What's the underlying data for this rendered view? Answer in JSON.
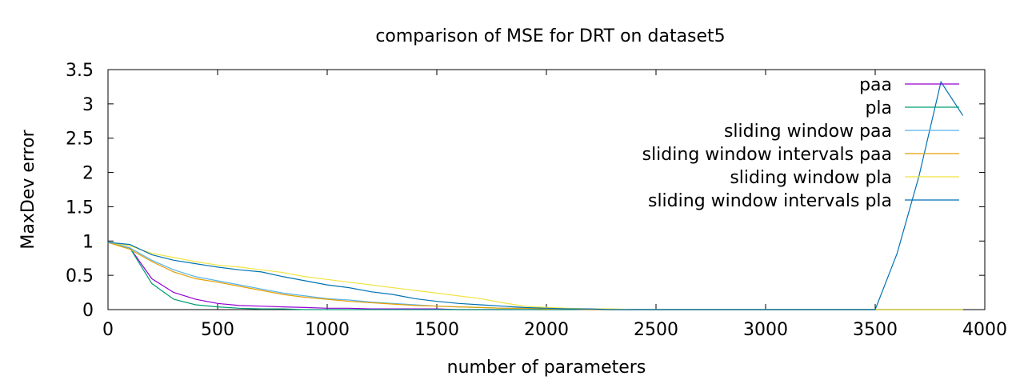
{
  "chart_data": {
    "type": "line",
    "title": "comparison of MSE for DRT on dataset5",
    "xlabel": "number of parameters",
    "ylabel": "MaxDev error",
    "xlim": [
      0,
      4000
    ],
    "ylim": [
      0,
      3.5
    ],
    "x_ticks": [
      "0",
      "500",
      "1000",
      "1500",
      "2000",
      "2500",
      "3000",
      "3500",
      "4000"
    ],
    "y_ticks": [
      "0",
      "0.5",
      "1",
      "1.5",
      "2",
      "2.5",
      "3",
      "3.5"
    ],
    "grid": false,
    "legend_position": "top-right",
    "series": [
      {
        "name": "paa",
        "color": "#9400d3",
        "x": [
          0,
          100,
          200,
          300,
          400,
          500,
          600,
          700,
          800,
          900,
          1000,
          1100,
          1200,
          1300,
          1400,
          1500,
          1600,
          1700,
          1800,
          1900,
          2000,
          2100,
          2200,
          2300,
          2400,
          2500,
          2600,
          2700,
          2800,
          2900,
          3000,
          3100,
          3200,
          3300,
          3400,
          3500,
          3600,
          3700,
          3800,
          3900
        ],
        "y": [
          0.98,
          0.9,
          0.45,
          0.25,
          0.15,
          0.09,
          0.06,
          0.05,
          0.04,
          0.03,
          0.02,
          0.02,
          0.01,
          0.01,
          0.01,
          0.01,
          0.0,
          0.0,
          0.0,
          0.0,
          0.0,
          0.0,
          0.0,
          0.0,
          0.0,
          0.0,
          0.0,
          0.0,
          0.0,
          0.0,
          0.0,
          0.0,
          0.0,
          0.0,
          0.0,
          0.0,
          0.0,
          0.0,
          0.0,
          0.0
        ]
      },
      {
        "name": "pla",
        "color": "#009e73",
        "x": [
          0,
          100,
          200,
          300,
          400,
          500,
          600,
          700,
          800,
          900,
          1000,
          1100,
          1200,
          1300,
          1400,
          1500,
          1600,
          1700,
          1800,
          1900,
          2000,
          2100,
          2200,
          2300,
          2400,
          2500,
          2600,
          2700,
          2800,
          2900,
          3000,
          3100,
          3200,
          3300,
          3400,
          3500,
          3600,
          3700,
          3800,
          3900
        ],
        "y": [
          0.98,
          0.9,
          0.38,
          0.15,
          0.07,
          0.04,
          0.02,
          0.01,
          0.01,
          0.0,
          0.0,
          0.0,
          0.0,
          0.0,
          0.0,
          0.0,
          0.0,
          0.0,
          0.0,
          0.0,
          0.0,
          0.0,
          0.0,
          0.0,
          0.0,
          0.0,
          0.0,
          0.0,
          0.0,
          0.0,
          0.0,
          0.0,
          0.0,
          0.0,
          0.0,
          0.0,
          0.0,
          0.0,
          0.0,
          0.0
        ]
      },
      {
        "name": "sliding window paa",
        "color": "#56b4e9",
        "x": [
          0,
          100,
          200,
          300,
          400,
          500,
          600,
          700,
          800,
          900,
          1000,
          1100,
          1200,
          1300,
          1400,
          1500,
          1600,
          1700,
          1800,
          1900,
          2000,
          2100,
          2200,
          2300,
          2400,
          2500,
          2600,
          2700,
          2800,
          2900,
          3000,
          3100,
          3200,
          3300,
          3400,
          3500,
          3600,
          3700,
          3800,
          3900
        ],
        "y": [
          0.98,
          0.9,
          0.72,
          0.58,
          0.48,
          0.42,
          0.36,
          0.3,
          0.24,
          0.2,
          0.16,
          0.14,
          0.11,
          0.09,
          0.07,
          0.05,
          0.04,
          0.03,
          0.02,
          0.02,
          0.01,
          0.01,
          0.0,
          0.0,
          0.0,
          0.0,
          0.0,
          0.0,
          0.0,
          0.0,
          0.0,
          0.0,
          0.0,
          0.0,
          0.0,
          0.0,
          0.0,
          0.0,
          0.0,
          0.0
        ]
      },
      {
        "name": "sliding window intervals paa",
        "color": "#e69f00",
        "x": [
          0,
          100,
          200,
          300,
          400,
          500,
          600,
          700,
          800,
          900,
          1000,
          1100,
          1200,
          1300,
          1400,
          1500,
          1600,
          1700,
          1800,
          1900,
          2000,
          2100,
          2200,
          2300,
          2400,
          2500,
          2600,
          2700,
          2800,
          2900,
          3000,
          3100,
          3200,
          3300,
          3400,
          3500,
          3600,
          3700,
          3800,
          3900
        ],
        "y": [
          0.98,
          0.88,
          0.7,
          0.55,
          0.45,
          0.4,
          0.34,
          0.28,
          0.22,
          0.18,
          0.15,
          0.12,
          0.1,
          0.08,
          0.06,
          0.05,
          0.04,
          0.03,
          0.02,
          0.02,
          0.01,
          0.01,
          0.0,
          0.0,
          0.0,
          0.0,
          0.0,
          0.0,
          0.0,
          0.0,
          0.0,
          0.0,
          0.0,
          0.0,
          0.0,
          0.0,
          0.0,
          0.0,
          0.0,
          0.0
        ]
      },
      {
        "name": "sliding window pla",
        "color": "#f0e442",
        "x": [
          0,
          100,
          200,
          300,
          400,
          500,
          600,
          700,
          800,
          900,
          1000,
          1100,
          1200,
          1300,
          1400,
          1500,
          1600,
          1700,
          1800,
          1900,
          2000,
          2100,
          2200,
          2300,
          2400,
          2500,
          2600,
          2700,
          2800,
          2900,
          3000,
          3100,
          3200,
          3300,
          3400,
          3500,
          3600,
          3700,
          3800,
          3900
        ],
        "y": [
          0.98,
          0.93,
          0.82,
          0.76,
          0.7,
          0.65,
          0.62,
          0.58,
          0.54,
          0.48,
          0.44,
          0.4,
          0.36,
          0.32,
          0.28,
          0.24,
          0.2,
          0.16,
          0.1,
          0.05,
          0.03,
          0.02,
          0.01,
          0.01,
          0.0,
          0.0,
          0.0,
          0.0,
          0.0,
          0.0,
          0.0,
          0.0,
          0.0,
          0.0,
          0.0,
          0.0,
          0.0,
          0.0,
          0.0,
          0.0
        ]
      },
      {
        "name": "sliding window intervals pla",
        "color": "#0072b2",
        "x": [
          0,
          100,
          200,
          300,
          400,
          500,
          600,
          700,
          800,
          900,
          1000,
          1100,
          1200,
          1300,
          1400,
          1500,
          1600,
          1700,
          1800,
          1900,
          2000,
          2100,
          2200,
          2300,
          2400,
          2500,
          2600,
          2700,
          2800,
          2900,
          3000,
          3100,
          3200,
          3300,
          3400,
          3500,
          3600,
          3700,
          3800,
          3900
        ],
        "y": [
          0.98,
          0.95,
          0.8,
          0.72,
          0.67,
          0.62,
          0.58,
          0.55,
          0.48,
          0.42,
          0.36,
          0.32,
          0.26,
          0.22,
          0.16,
          0.12,
          0.09,
          0.07,
          0.05,
          0.03,
          0.02,
          0.01,
          0.01,
          0.0,
          0.0,
          0.0,
          0.0,
          0.0,
          0.0,
          0.0,
          0.0,
          0.0,
          0.0,
          0.0,
          0.0,
          0.0,
          0.82,
          1.95,
          3.32,
          2.83
        ]
      }
    ]
  }
}
